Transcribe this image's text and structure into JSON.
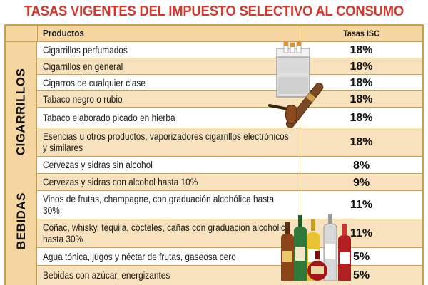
{
  "title": "TASAS VIGENTES DEL IMPUESTO SELECTIVO AL CONSUMO",
  "header": {
    "products": "Productos",
    "rates": "Tasas ISC"
  },
  "sections": [
    {
      "label": "CIGARRILLOS",
      "rows": [
        {
          "product": "Cigarrillos perfumados",
          "rate": "18%"
        },
        {
          "product": "Cigarrillos en general",
          "rate": "18%"
        },
        {
          "product": "Cigarros de cualquier clase",
          "rate": "18%"
        },
        {
          "product": "Tabaco negro o rubio",
          "rate": "18%"
        },
        {
          "product": "Tabaco elaborado picado en hierba",
          "rate": "18%"
        },
        {
          "product": "Esencias u otros productos, vaporizadores cigarrillos electrónicos y similares",
          "rate": "18%"
        }
      ]
    },
    {
      "label": "BEBIDAS",
      "rows": [
        {
          "product": "Cervezas y sidras sin alcohol",
          "rate": "8%"
        },
        {
          "product": "Cervezas y sidras con alcohol hasta 10%",
          "rate": "9%"
        },
        {
          "product": "Vinos de frutas, champagne, con graduación alcohólica hasta 30%",
          "rate": "11%"
        },
        {
          "product": "Coñac, whisky, tequila, cócteles, cañas con graduación alcohólica hasta 30%",
          "rate": "11%"
        },
        {
          "product": "Agua tónica, jugos y néctar de frutas, gaseosa cero",
          "rate": "5%"
        },
        {
          "product": "Bebidas con azúcar, energizantes",
          "rate": "5%"
        }
      ]
    }
  ],
  "colors": {
    "title": "#d2372b",
    "header_bg": "#f5d5a0",
    "row_alt_bg": "#f8e2bd",
    "border": "#c9a04a"
  },
  "illustrations": [
    "cigarette-pack-pipe-cigar",
    "liquor-bottles"
  ]
}
